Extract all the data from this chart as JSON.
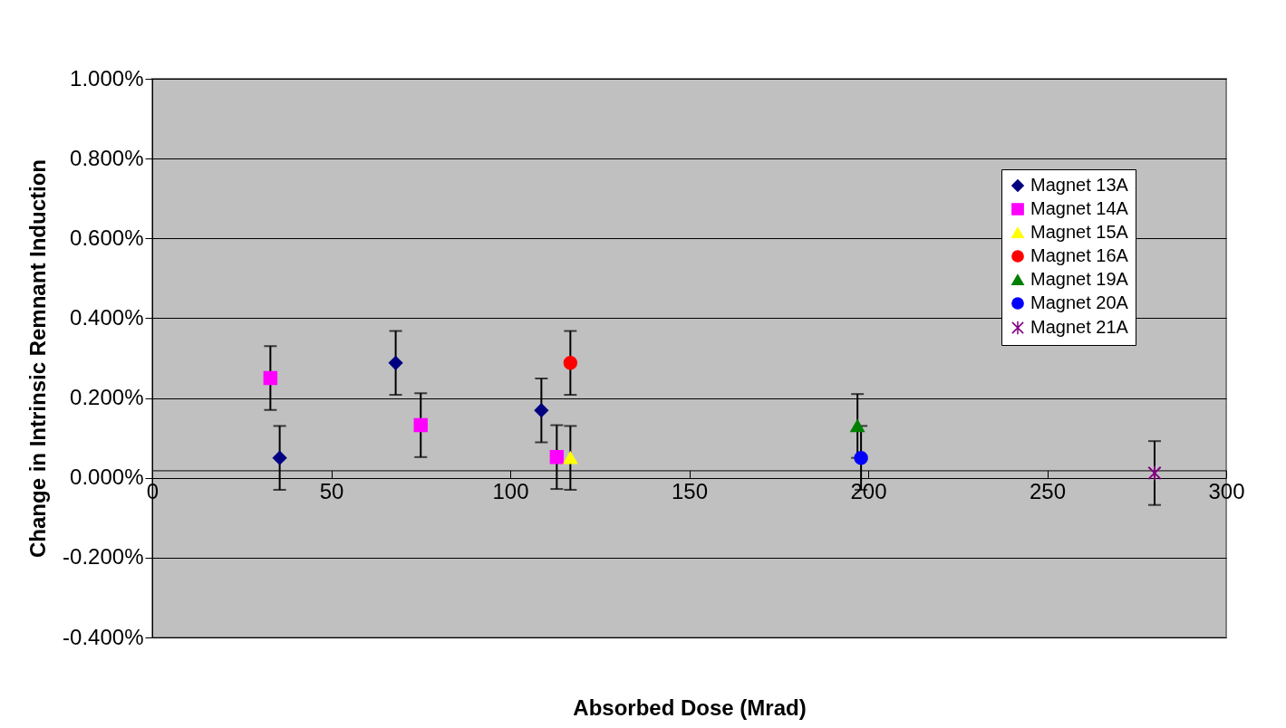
{
  "chart_data": {
    "type": "scatter",
    "xlabel": "Absorbed Dose (Mrad)",
    "ylabel": "Change in Intrinsic Remnant Induction",
    "xlim": [
      0,
      300
    ],
    "xticks": [
      0,
      50,
      100,
      150,
      200,
      250,
      300
    ],
    "ylim": [
      -0.4,
      1.0
    ],
    "yticks": [
      {
        "value": -0.4,
        "label": "-0.400%"
      },
      {
        "value": -0.2,
        "label": "-0.200%"
      },
      {
        "value": 0,
        "label": "0.000%"
      },
      {
        "value": 0.2,
        "label": "0.200%"
      },
      {
        "value": 0.4,
        "label": "0.400%"
      },
      {
        "value": 0.6,
        "label": "0.600%"
      },
      {
        "value": 0.8,
        "label": "0.800%"
      },
      {
        "value": 1.0,
        "label": "1.000%"
      }
    ],
    "grid": "y",
    "legend": "top right",
    "series": [
      {
        "name": "Magnet 13A",
        "color": "#000080",
        "marker": "diamond",
        "x": [
          35.6,
          68,
          108.7
        ],
        "values": [
          0.05,
          0.288,
          0.169
        ],
        "errors": [
          0.08,
          0.08,
          0.08
        ]
      },
      {
        "name": "Magnet 14A",
        "color": "#ff00ff",
        "marker": "square",
        "x": [
          33,
          75,
          113
        ],
        "values": [
          0.25,
          0.132,
          0.052
        ],
        "errors": [
          0.08,
          0.08,
          0.08
        ]
      },
      {
        "name": "Magnet 15A",
        "color": "#ffff00",
        "marker": "triangle",
        "x": [
          116.8
        ],
        "values": [
          0.05
        ],
        "errors": [
          0.08
        ]
      },
      {
        "name": "Magnet 16A",
        "color": "#ff0000",
        "marker": "circle",
        "x": [
          116.8
        ],
        "values": [
          0.288
        ],
        "errors": [
          0.08
        ]
      },
      {
        "name": "Magnet 19A",
        "color": "#008000",
        "marker": "triangle",
        "x": [
          197
        ],
        "values": [
          0.13
        ],
        "errors": [
          0.08
        ]
      },
      {
        "name": "Magnet 20A",
        "color": "#0000ff",
        "marker": "circle",
        "x": [
          198
        ],
        "values": [
          0.05
        ],
        "errors": [
          0.08
        ]
      },
      {
        "name": "Magnet 21A",
        "color": "#800080",
        "marker": "cross",
        "x": [
          280
        ],
        "values": [
          0.012
        ],
        "errors": [
          0.08
        ]
      }
    ]
  }
}
